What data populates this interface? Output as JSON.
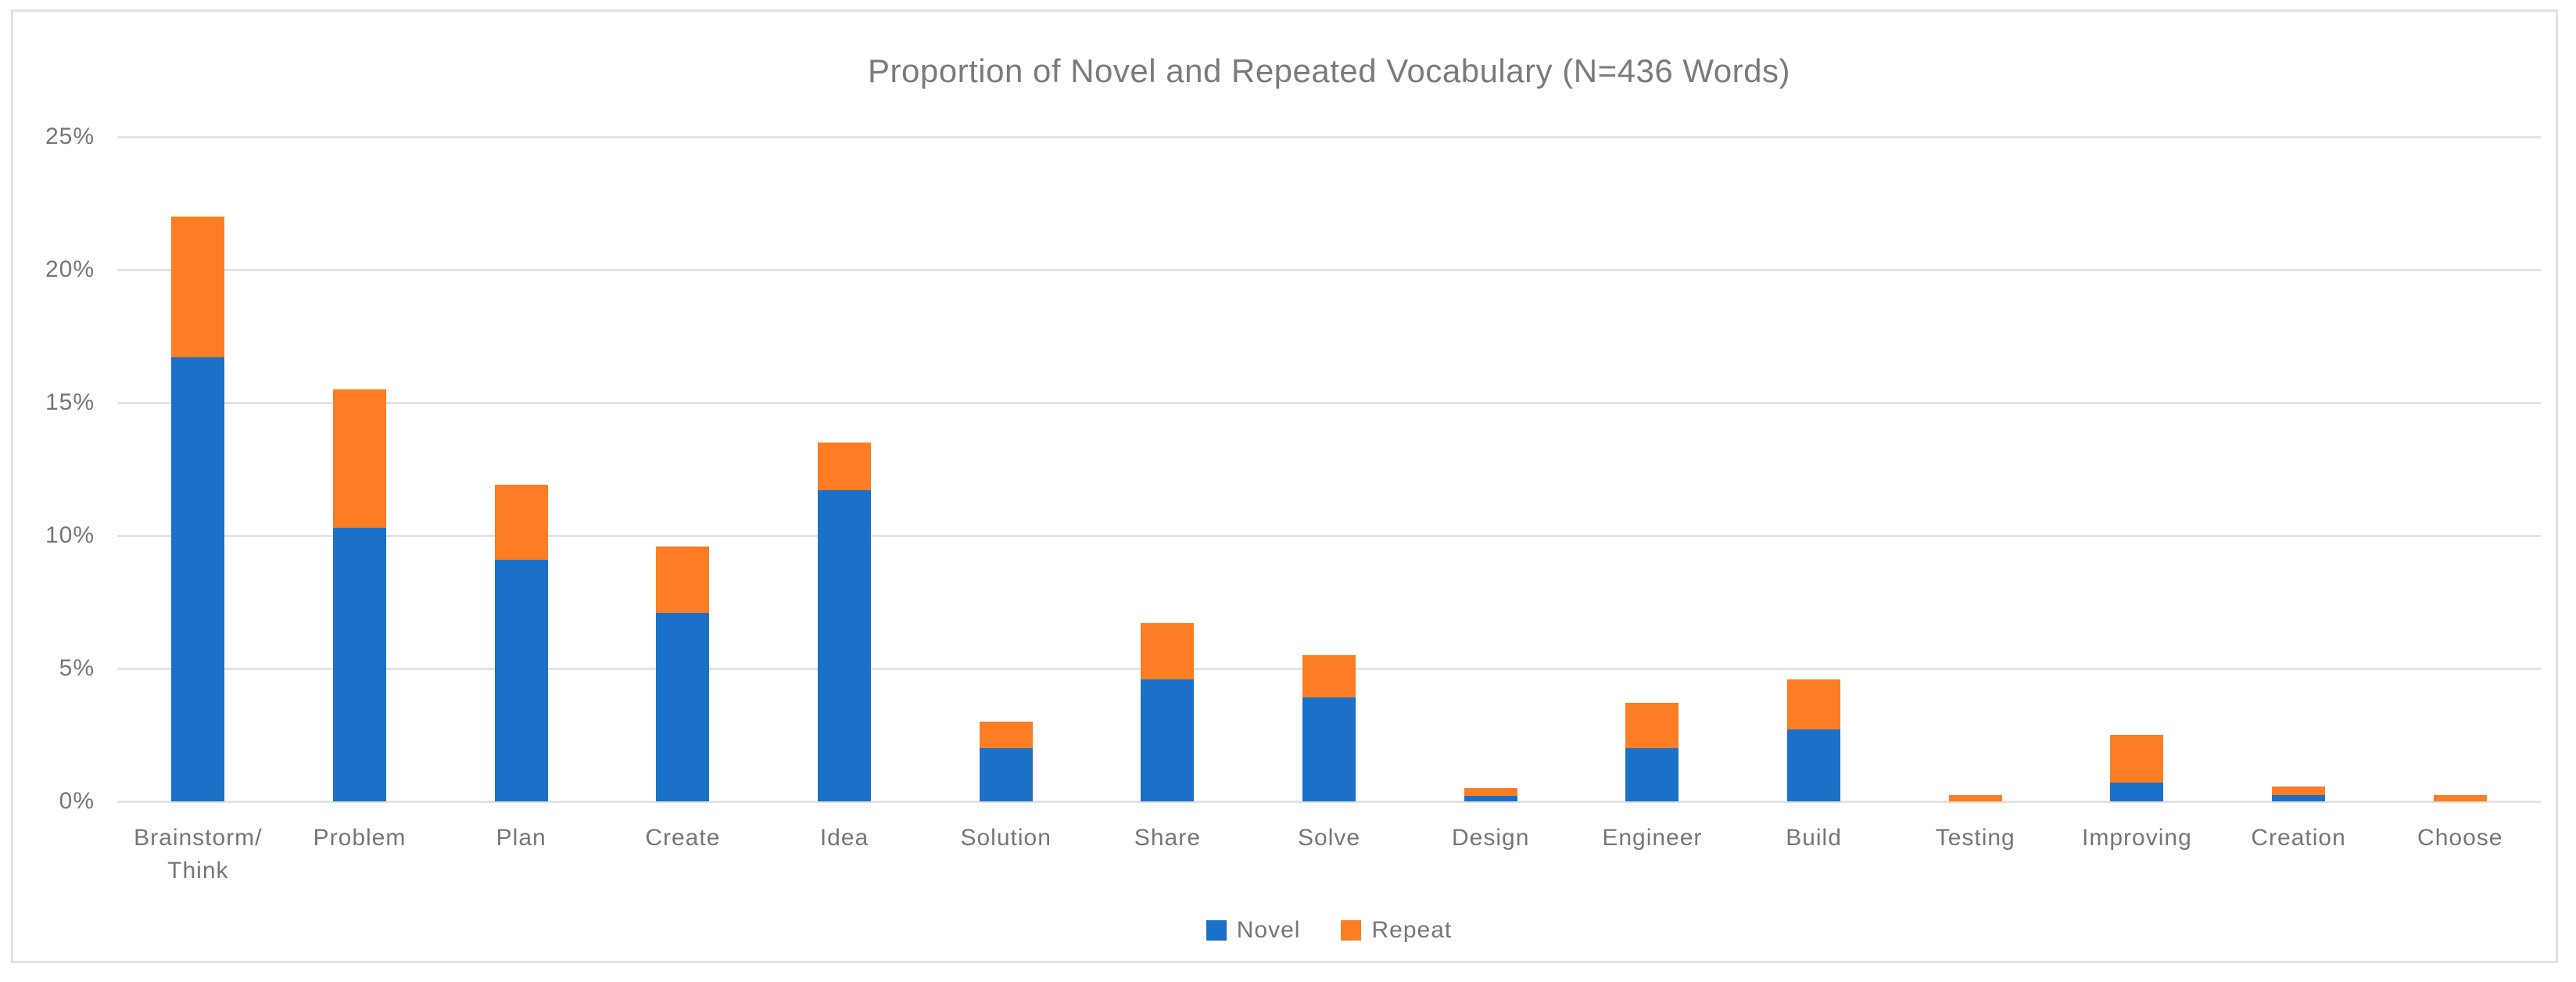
{
  "chart_data": {
    "type": "bar",
    "stacked": true,
    "title": "Proportion of Novel and Repeated Vocabulary (N=436 Words)",
    "categories": [
      "Brainstorm/\nThink",
      "Problem",
      "Plan",
      "Create",
      "Idea",
      "Solution",
      "Share",
      "Solve",
      "Design",
      "Engineer",
      "Build",
      "Testing",
      "Improving",
      "Creation",
      "Choose"
    ],
    "series": [
      {
        "name": "Novel",
        "color": "#1B70C8",
        "values": [
          16.7,
          10.3,
          9.1,
          7.1,
          11.7,
          2.0,
          4.6,
          3.9,
          0.2,
          2.0,
          2.7,
          0.0,
          0.7,
          0.25,
          0.0
        ]
      },
      {
        "name": "Repeat",
        "color": "#FC7D23",
        "values": [
          5.3,
          5.2,
          2.8,
          2.5,
          1.8,
          1.0,
          2.1,
          1.6,
          0.3,
          1.7,
          1.9,
          0.25,
          1.8,
          0.3,
          0.25
        ]
      }
    ],
    "xlabel": "",
    "ylabel": "",
    "ylim": [
      0,
      25
    ],
    "yticks": [
      0,
      5,
      10,
      15,
      20,
      25
    ],
    "ytick_labels": [
      "0%",
      "5%",
      "10%",
      "15%",
      "20%",
      "25%"
    ],
    "grid": true,
    "legend_position": "bottom-center",
    "gridline_color": "#E3E3E3",
    "frame_border_color": "#E2E2E2",
    "text_color": "#767676",
    "title_color": "#7B7B7B"
  }
}
